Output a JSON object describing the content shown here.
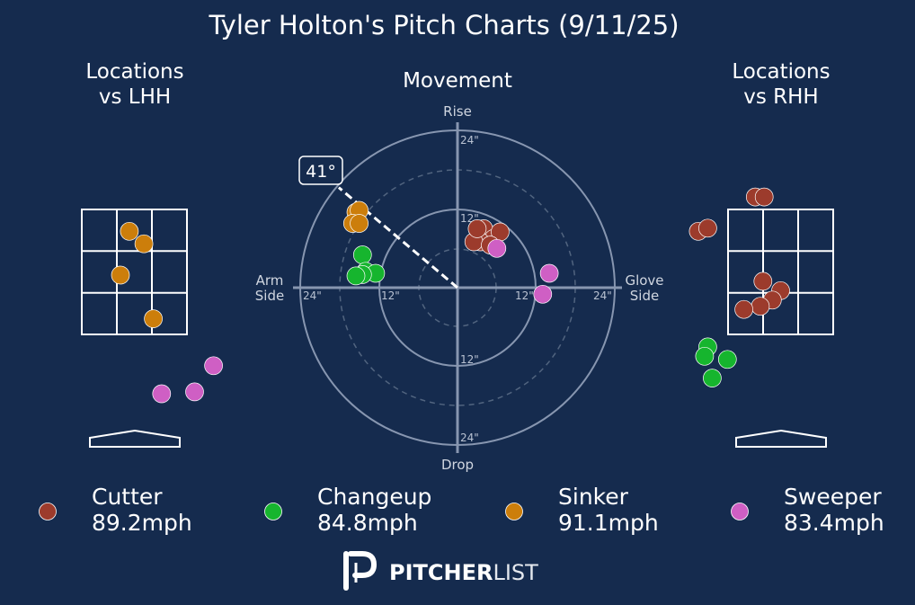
{
  "title": "Tyler Holton's Pitch Charts (9/11/25)",
  "panels": {
    "lhh_title_line1": "Locations",
    "lhh_title_line2": "vs LHH",
    "rhh_title_line1": "Locations",
    "rhh_title_line2": "vs RHH",
    "movement_title": "Movement"
  },
  "movement_axis": {
    "top": "Rise",
    "bottom": "Drop",
    "left_line1": "Arm",
    "left_line2": "Side",
    "right_line1": "Glove",
    "right_line2": "Side",
    "ring_labels": [
      "12\"",
      "24\""
    ]
  },
  "arm_angle_label": "41°",
  "colors": {
    "background": "#152b4e",
    "Cutter": "#9c3b2c",
    "Changeup": "#16b52e",
    "Sinker": "#cc7e0b",
    "Sweeper": "#cf5fc4"
  },
  "legend": [
    {
      "name": "Cutter",
      "velo": "89.2mph"
    },
    {
      "name": "Changeup",
      "velo": "84.8mph"
    },
    {
      "name": "Sinker",
      "velo": "91.1mph"
    },
    {
      "name": "Sweeper",
      "velo": "83.4mph"
    }
  ],
  "brand": {
    "bold": "PITCHER",
    "light": "LIST",
    "logo": "pitcherlist-logo"
  },
  "chart_data": [
    {
      "type": "scatter",
      "title": "Locations vs LHH",
      "x_units": "ft (catcher view, plate center = 0)",
      "y_units": "ft above ground",
      "strike_zone": {
        "x": [
          -0.83,
          0.83
        ],
        "y": [
          1.5,
          3.5
        ]
      },
      "series": [
        {
          "name": "Sinker",
          "points": [
            [
              -0.08,
              3.15
            ],
            [
              0.15,
              2.95
            ],
            [
              -0.22,
              2.45
            ],
            [
              0.3,
              1.75
            ]
          ]
        },
        {
          "name": "Sweeper",
          "points": [
            [
              1.25,
              1.0
            ],
            [
              0.95,
              0.58
            ],
            [
              0.43,
              0.55
            ]
          ]
        }
      ]
    },
    {
      "type": "scatter",
      "title": "Movement",
      "x_units": "inches (negative = arm side, positive = glove side)",
      "y_units": "inches (positive = rise)",
      "xlim": [
        -24,
        24
      ],
      "ylim": [
        -24,
        24
      ],
      "arm_angle_deg": 41,
      "series": [
        {
          "name": "Cutter",
          "points": [
            [
              4,
              9
            ],
            [
              5.5,
              7.5
            ],
            [
              6.5,
              8.5
            ],
            [
              3.5,
              7
            ],
            [
              2.5,
              7
            ],
            [
              5,
              6.5
            ],
            [
              3,
              9
            ]
          ]
        },
        {
          "name": "Changeup",
          "points": [
            [
              -14.5,
              5
            ],
            [
              -14,
              2.5
            ],
            [
              -12.5,
              2.2
            ],
            [
              -14.5,
              2
            ],
            [
              -15.5,
              1.8
            ]
          ]
        },
        {
          "name": "Sinker",
          "points": [
            [
              -15.5,
              11.5
            ],
            [
              -15,
              11.8
            ],
            [
              -16,
              9.8
            ],
            [
              -15,
              9.8
            ]
          ]
        },
        {
          "name": "Sweeper",
          "points": [
            [
              6,
              6
            ],
            [
              14,
              2.2
            ],
            [
              13,
              -1
            ]
          ]
        }
      ]
    },
    {
      "type": "scatter",
      "title": "Locations vs RHH",
      "x_units": "ft (catcher view, plate center = 0)",
      "y_units": "ft above ground",
      "strike_zone": {
        "x": [
          -0.83,
          0.83
        ],
        "y": [
          1.5,
          3.5
        ]
      },
      "series": [
        {
          "name": "Cutter",
          "points": [
            [
              -0.4,
              3.7
            ],
            [
              -0.26,
              3.7
            ],
            [
              -1.3,
              3.15
            ],
            [
              -1.15,
              3.2
            ],
            [
              -0.28,
              2.35
            ],
            [
              0.0,
              2.2
            ],
            [
              -0.13,
              2.05
            ],
            [
              -0.32,
              1.95
            ],
            [
              -0.58,
              1.9
            ]
          ]
        },
        {
          "name": "Changeup",
          "points": [
            [
              -1.15,
              1.3
            ],
            [
              -1.2,
              1.15
            ],
            [
              -0.84,
              1.1
            ],
            [
              -1.08,
              0.8
            ]
          ]
        }
      ]
    }
  ]
}
